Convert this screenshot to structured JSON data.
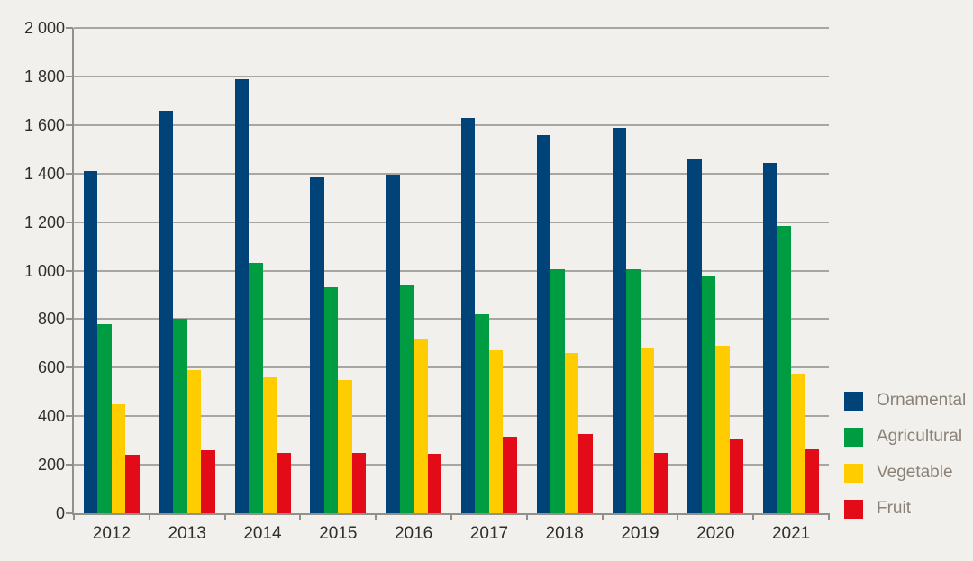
{
  "chart_data": {
    "type": "bar",
    "categories": [
      "2012",
      "2013",
      "2014",
      "2015",
      "2016",
      "2017",
      "2018",
      "2019",
      "2020",
      "2021"
    ],
    "series": [
      {
        "name": "Ornamental",
        "color": "#004379",
        "values": [
          1410,
          1660,
          1790,
          1385,
          1395,
          1630,
          1560,
          1590,
          1460,
          1445
        ]
      },
      {
        "name": "Agricultural",
        "color": "#009c41",
        "values": [
          780,
          800,
          1030,
          930,
          940,
          820,
          1005,
          1005,
          980,
          1185
        ]
      },
      {
        "name": "Vegetable",
        "color": "#ffcc00",
        "values": [
          450,
          590,
          560,
          550,
          720,
          670,
          660,
          680,
          690,
          575
        ]
      },
      {
        "name": "Fruit",
        "color": "#e30b17",
        "values": [
          240,
          260,
          250,
          250,
          245,
          315,
          325,
          250,
          305,
          265
        ]
      }
    ],
    "title": "",
    "xlabel": "",
    "ylabel": "",
    "ylim": [
      0,
      2000
    ],
    "ytick_step": 200,
    "ytick_labels": [
      "0",
      "200",
      "400",
      "600",
      "800",
      "1 000",
      "1 200",
      "1 400",
      "1 600",
      "1 800",
      "2 000"
    ],
    "grid": true,
    "legend_position": "right"
  },
  "colors": {
    "background": "#f1f0ec",
    "gridline": "#a7a6a1",
    "axis": "#91908b",
    "tick_label": "#2f2e2b",
    "legend_label": "#8b8277"
  }
}
